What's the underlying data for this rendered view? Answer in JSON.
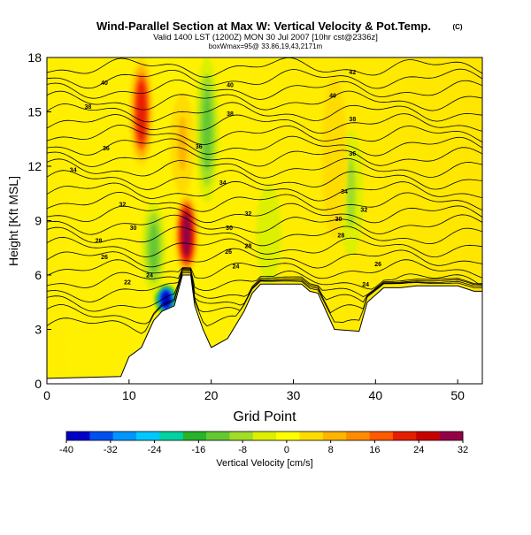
{
  "header": {
    "title": "Wind-Parallel Section at Max W: Vertical Velocity & Pot.Temp.",
    "copyright": "(C)",
    "valid_line": "Valid 1400 LST (1200Z) MON 30 Jul 2007 [10hr cst@2336z]",
    "box_line": "boxWmax=95@ 33.86,19,43,2171m"
  },
  "colors": {
    "colorbar": [
      "#0000c8",
      "#0050f0",
      "#0096ff",
      "#00c8ff",
      "#00d2a0",
      "#28b428",
      "#64c832",
      "#a0dc28",
      "#dcf000",
      "#ffff00",
      "#ffdc00",
      "#ffb400",
      "#ff8c00",
      "#ff5a00",
      "#e61e00",
      "#c80000",
      "#960046"
    ],
    "terrain": "#ffffff",
    "contour": "#000000"
  },
  "chart_data": {
    "type": "contour",
    "xlabel": "Grid Point",
    "ylabel": "Height [Kft MSL]",
    "xlim": [
      0,
      53
    ],
    "ylim": [
      0,
      18
    ],
    "xticks": [
      0,
      10,
      20,
      30,
      40,
      50
    ],
    "yticks": [
      0,
      3,
      6,
      9,
      12,
      15,
      18
    ],
    "colorbar": {
      "label": "Vertical Velocity [cm/s]",
      "ticks": [
        -40,
        -32,
        -24,
        -16,
        -8,
        0,
        8,
        16,
        24,
        32
      ],
      "range": [
        -40,
        32
      ]
    },
    "updrafts": [
      {
        "x": 11.5,
        "y_bottom": 12,
        "y_top": 18,
        "w": 22
      },
      {
        "x": 17,
        "y_bottom": 6,
        "y_top": 10.5,
        "w": 30
      },
      {
        "x": 16.5,
        "y_bottom": 10.5,
        "y_top": 16,
        "w": 8
      },
      {
        "x": 35,
        "y_bottom": 8,
        "y_top": 17,
        "w": 6
      }
    ],
    "downdrafts": [
      {
        "x": 14.5,
        "y_bottom": 3.8,
        "y_top": 5.5,
        "w": -40
      },
      {
        "x": 13,
        "y_bottom": 5,
        "y_top": 10,
        "w": -14
      },
      {
        "x": 19.5,
        "y_bottom": 10,
        "y_top": 18,
        "w": -12
      },
      {
        "x": 27,
        "y_bottom": 5.5,
        "y_top": 11,
        "w": -6
      },
      {
        "x": 37,
        "y_bottom": 7,
        "y_top": 14,
        "w": -8
      }
    ],
    "theta_labels": [
      {
        "x": 7,
        "y": 16.6,
        "value": "40"
      },
      {
        "x": 5,
        "y": 15.3,
        "value": "38"
      },
      {
        "x": 7.2,
        "y": 13.0,
        "value": "36"
      },
      {
        "x": 3.2,
        "y": 11.8,
        "value": "34"
      },
      {
        "x": 9.2,
        "y": 9.9,
        "value": "32"
      },
      {
        "x": 10.5,
        "y": 8.6,
        "value": "30"
      },
      {
        "x": 6.3,
        "y": 7.9,
        "value": "28"
      },
      {
        "x": 7.0,
        "y": 7.0,
        "value": "26"
      },
      {
        "x": 9.8,
        "y": 5.6,
        "value": "22"
      },
      {
        "x": 12.5,
        "y": 6.0,
        "value": "24"
      },
      {
        "x": 22.3,
        "y": 16.5,
        "value": "40"
      },
      {
        "x": 22.3,
        "y": 14.9,
        "value": "38"
      },
      {
        "x": 18.5,
        "y": 13.1,
        "value": "36"
      },
      {
        "x": 21.4,
        "y": 11.1,
        "value": "34"
      },
      {
        "x": 24.5,
        "y": 9.4,
        "value": "32"
      },
      {
        "x": 22.2,
        "y": 8.6,
        "value": "30"
      },
      {
        "x": 24.5,
        "y": 7.6,
        "value": "28"
      },
      {
        "x": 22.1,
        "y": 7.3,
        "value": "26"
      },
      {
        "x": 23.0,
        "y": 6.5,
        "value": "24"
      },
      {
        "x": 37.2,
        "y": 17.2,
        "value": "42"
      },
      {
        "x": 34.8,
        "y": 15.9,
        "value": "40"
      },
      {
        "x": 37.2,
        "y": 14.6,
        "value": "38"
      },
      {
        "x": 37.2,
        "y": 12.7,
        "value": "36"
      },
      {
        "x": 36.2,
        "y": 10.6,
        "value": "34"
      },
      {
        "x": 38.6,
        "y": 9.6,
        "value": "32"
      },
      {
        "x": 35.5,
        "y": 9.1,
        "value": "30"
      },
      {
        "x": 35.8,
        "y": 8.2,
        "value": "28"
      },
      {
        "x": 40.3,
        "y": 6.6,
        "value": "26"
      },
      {
        "x": 38.8,
        "y": 5.5,
        "value": "24"
      }
    ]
  }
}
